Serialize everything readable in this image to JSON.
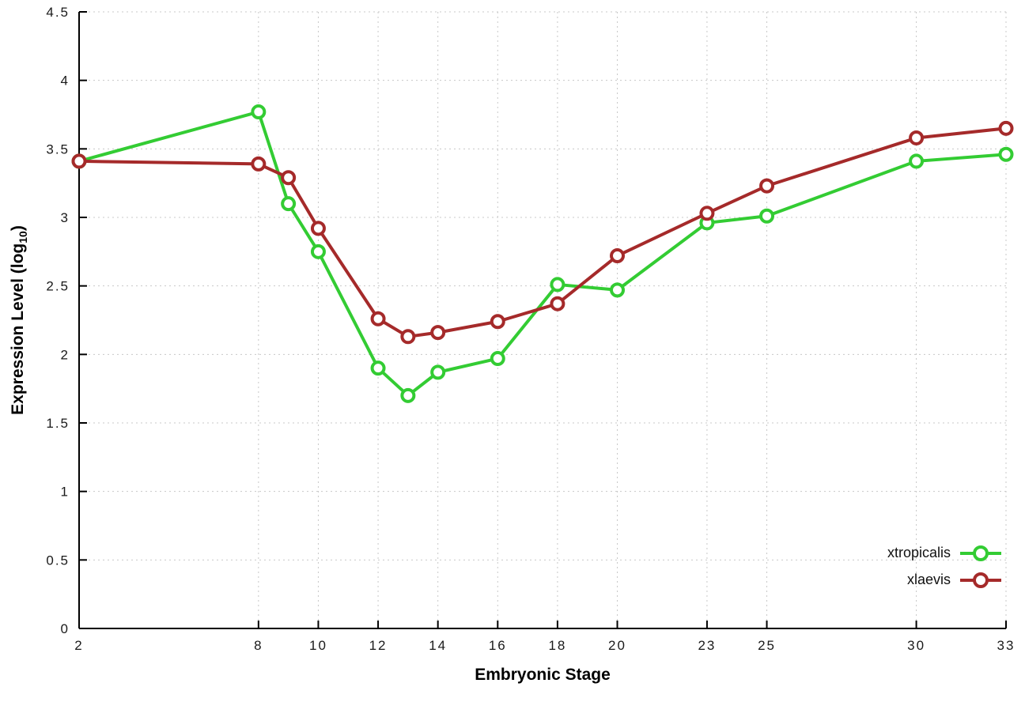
{
  "chart_data": {
    "type": "line",
    "title": "",
    "xlabel": "Embryonic Stage",
    "ylabel": "Expression Level (log10)",
    "ylabel_parts": {
      "prefix": "Expression Level (log",
      "sub": "10",
      "suffix": ")"
    },
    "xlim": [
      2,
      33
    ],
    "ylim": [
      0,
      4.5
    ],
    "grid": true,
    "grid_color": "#c8c8c8",
    "axis_color": "#000000",
    "background_color": "#ffffff",
    "legend_position": "bottom-right",
    "x_ticks": [
      "2",
      "8",
      "10",
      "12",
      "14",
      "16",
      "18",
      "20",
      "23",
      "25",
      "30",
      "33"
    ],
    "y_ticks": [
      "0",
      "0.5",
      "1",
      "1.5",
      "2",
      "2.5",
      "3",
      "3.5",
      "4",
      "4.5"
    ],
    "x": [
      2,
      8,
      9,
      10,
      12,
      13,
      14,
      16,
      18,
      20,
      23,
      25,
      30,
      33
    ],
    "series": [
      {
        "name": "xtropicalis",
        "color": "#33cc33",
        "marker": "open-circle",
        "values": [
          3.41,
          3.77,
          3.1,
          2.75,
          1.9,
          1.7,
          1.87,
          1.97,
          2.51,
          2.47,
          2.96,
          3.01,
          3.41,
          3.46
        ]
      },
      {
        "name": "xlaevis",
        "color": "#a52a2a",
        "marker": "open-circle",
        "values": [
          3.41,
          3.39,
          3.29,
          2.92,
          2.26,
          2.13,
          2.16,
          2.24,
          2.37,
          2.72,
          3.03,
          3.23,
          3.58,
          3.65
        ]
      }
    ]
  }
}
